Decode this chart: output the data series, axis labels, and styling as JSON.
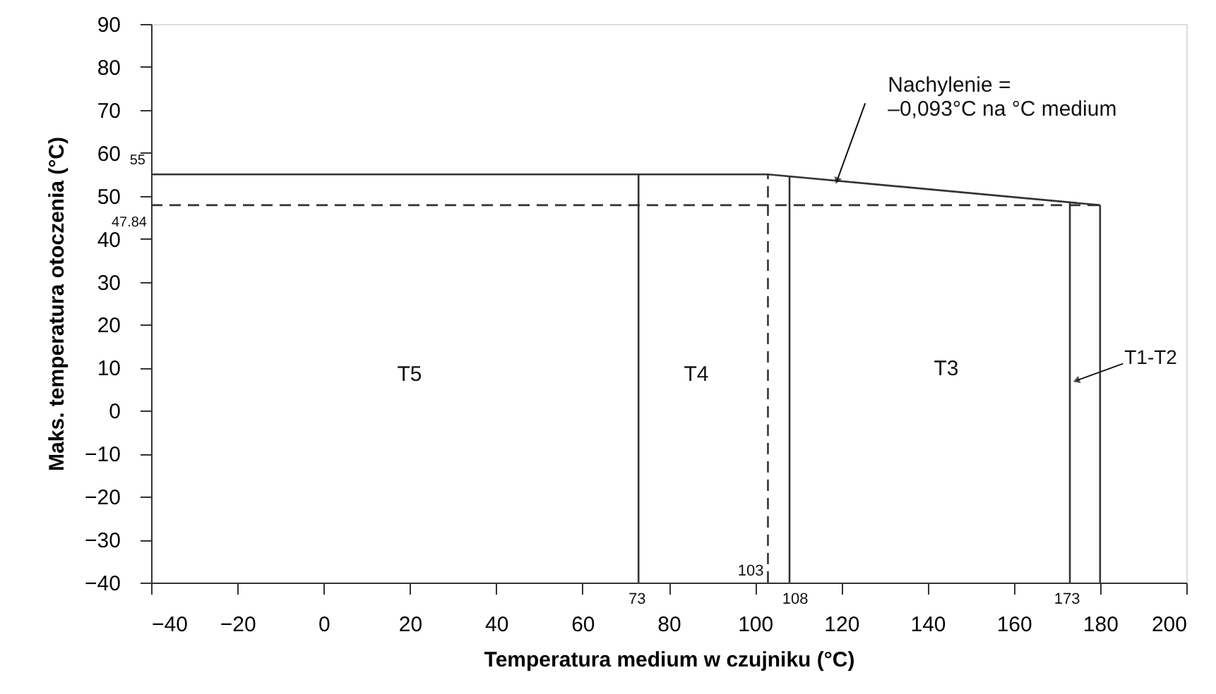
{
  "chart_data": {
    "type": "line",
    "xlabel": "Temperatura medium w czujniku (°C)",
    "ylabel": "Maks. temperatura otoczenia (°C)",
    "xlim": [
      -40,
      200
    ],
    "xticks": [
      -40,
      -20,
      0,
      20,
      40,
      60,
      80,
      100,
      120,
      140,
      160,
      180,
      200
    ],
    "ylim": [
      -40,
      90
    ],
    "yticks": [
      -40,
      -30,
      -20,
      -10,
      0,
      10,
      20,
      30,
      40,
      50,
      60,
      70,
      80,
      90
    ],
    "grid": false,
    "marker": "none",
    "series": [
      {
        "color": "#333333",
        "x": [
          -40,
          103,
          180
        ],
        "values": [
          55,
          55,
          47.84
        ],
        "line_style": "solid"
      },
      {
        "color": "#333333",
        "x": [
          73,
          73
        ],
        "values": [
          -40,
          55
        ],
        "line_style": "solid"
      },
      {
        "color": "#333333",
        "x": [
          108,
          108
        ],
        "values": [
          -40,
          54.5
        ],
        "line_style": "solid"
      },
      {
        "color": "#333333",
        "x": [
          173,
          173
        ],
        "values": [
          -40,
          48.5
        ],
        "line_style": "solid"
      },
      {
        "color": "#333333",
        "x": [
          180,
          180
        ],
        "values": [
          -40,
          47.84
        ],
        "line_style": "solid"
      },
      {
        "color": "#333333",
        "x": [
          103,
          103
        ],
        "values": [
          -40,
          55
        ],
        "line_style": "dashed"
      },
      {
        "color": "#333333",
        "x": [
          -40,
          180
        ],
        "values": [
          47.84,
          47.84
        ],
        "line_style": "dashed"
      }
    ],
    "annotations": [
      "T5",
      "T4",
      "T3",
      {
        "text": "T1-T2",
        "x": 174.5,
        "y": 7
      },
      {
        "text": "Nachylenie =\n–0,093°C na °C medium",
        "x": 119,
        "y": 53.5
      },
      {
        "text": "55",
        "x": -40,
        "y": 55
      },
      {
        "text": "47.84",
        "x": -40,
        "y": 47.84
      },
      {
        "text": "73",
        "x": 73,
        "y": -40
      },
      {
        "text": "103",
        "x": 103,
        "y": -40
      },
      {
        "text": "108",
        "x": 108,
        "y": -40
      },
      {
        "text": "173",
        "x": 173,
        "y": -40
      }
    ]
  }
}
